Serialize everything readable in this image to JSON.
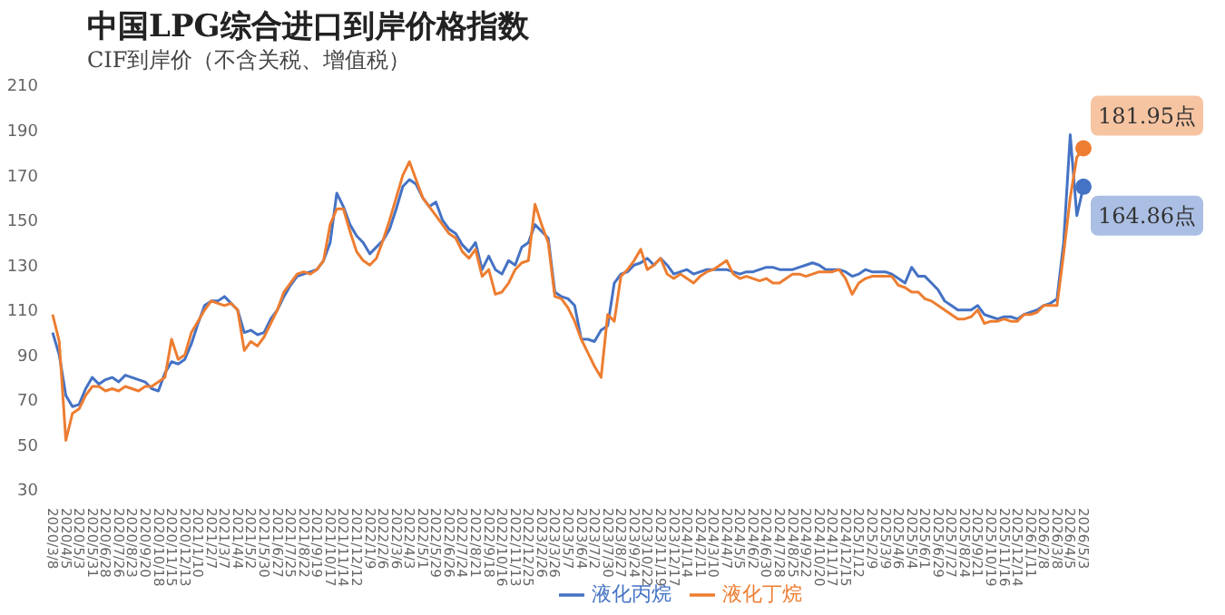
{
  "chart_data": {
    "type": "line",
    "title": "中国LPG综合进口到岸价格指数",
    "subtitle": "CIF到岸价（不含关税、增值税）",
    "categories": [
      "2020/3/8",
      null,
      "2020/4/5",
      null,
      "2020/5/3",
      null,
      "2020/5/31",
      null,
      "2020/6/28",
      null,
      "2020/7/26",
      null,
      "2020/8/23",
      null,
      "2020/9/20",
      null,
      "2020/10/18",
      null,
      "2020/11/15",
      null,
      "2020/12/13",
      null,
      "2021/1/10",
      null,
      "2021/2/7",
      null,
      "2021/3/7",
      null,
      "2021/4/4",
      null,
      "2021/5/2",
      null,
      "2021/5/30",
      null,
      "2021/6/27",
      null,
      "2021/7/25",
      null,
      "2021/8/22",
      null,
      "2021/9/19",
      null,
      "2021/10/17",
      null,
      "2021/11/14",
      null,
      "2021/12/12",
      null,
      "2022/1/9",
      null,
      "2022/2/6",
      null,
      "2022/3/6",
      null,
      "2022/4/3",
      null,
      "2022/5/1",
      null,
      "2022/5/29",
      null,
      "2022/6/26",
      null,
      "2022/7/24",
      null,
      "2022/8/21",
      null,
      "2022/9/18",
      null,
      "2022/10/16",
      null,
      "2022/11/13",
      null,
      "2022/12/25",
      null,
      "2023/2/26",
      null,
      "2023/3/26",
      null,
      "2023/5/7",
      null,
      "2023/6/4",
      null,
      "2023/7/2",
      null,
      "2023/7/30",
      null,
      "2023/8/27",
      null,
      "2023/9/24",
      null,
      "2023/10/22",
      null,
      "2023/11/19",
      null,
      "2023/12/17",
      null,
      "2024/1/14",
      null,
      "2024/2/11",
      null,
      "2024/3/10",
      null,
      "2024/4/7",
      null,
      "2024/5/5",
      null,
      "2024/6/2",
      null,
      "2024/6/30",
      null,
      "2024/7/28",
      null,
      "2024/8/25",
      null,
      "2024/9/22",
      null,
      "2024/10/20",
      null,
      "2024/11/17",
      null,
      "2024/12/15",
      null,
      "2025/1/12",
      null,
      "2025/2/9",
      null,
      "2025/3/9",
      null,
      "2025/4/6",
      null,
      "2025/5/4",
      null,
      "2025/6/1",
      null,
      "2025/6/29",
      null,
      "2025/7/27",
      null,
      "2025/8/24",
      null,
      "2025/9/21",
      null,
      "2025/10/19",
      null,
      "2025/11/16",
      null,
      "2025/12/14",
      null,
      "2026/1/11",
      null,
      "2026/2/8",
      null,
      "2026/3/8",
      null,
      "2026/4/5",
      null,
      "2026/5/3"
    ],
    "series": [
      {
        "name": "液化丙烷",
        "color": "#4472c4",
        "values": [
          100,
          90,
          72,
          67,
          68,
          75,
          80,
          77,
          79,
          80,
          78,
          81,
          80,
          79,
          78,
          75,
          74,
          82,
          87,
          86,
          88,
          95,
          104,
          112,
          114,
          114,
          116,
          113,
          110,
          100,
          101,
          99,
          100,
          106,
          110,
          116,
          121,
          125,
          126,
          127,
          128,
          132,
          140,
          162,
          156,
          148,
          143,
          140,
          135,
          138,
          141,
          146,
          155,
          165,
          168,
          166,
          160,
          156,
          158,
          150,
          146,
          144,
          139,
          136,
          140,
          128,
          134,
          128,
          126,
          132,
          130,
          138,
          140,
          148,
          145,
          142,
          118,
          116,
          115,
          112,
          97,
          97,
          96,
          101,
          103,
          122,
          126,
          127,
          130,
          131,
          133,
          130,
          133,
          130,
          126,
          127,
          128,
          126,
          127,
          128,
          128,
          128,
          128,
          127,
          126,
          127,
          127,
          128,
          129,
          129,
          128,
          128,
          128,
          129,
          130,
          131,
          130,
          128,
          128,
          128,
          127,
          125,
          126,
          128,
          127,
          127,
          127,
          126,
          124,
          122,
          129,
          125,
          125,
          122,
          119,
          114,
          112,
          110,
          110,
          110,
          112,
          108,
          107,
          106,
          107,
          107,
          106,
          108,
          109,
          110,
          112,
          113,
          115,
          140,
          188,
          152,
          164.86
        ]
      },
      {
        "name": "液化丁烷",
        "color": "#ed7d31",
        "values": [
          108,
          96,
          52,
          64,
          66,
          72,
          76,
          76,
          74,
          75,
          74,
          76,
          75,
          74,
          76,
          76,
          78,
          80,
          97,
          88,
          90,
          100,
          105,
          110,
          114,
          113,
          112,
          113,
          110,
          92,
          96,
          94,
          98,
          104,
          110,
          118,
          122,
          126,
          127,
          126,
          128,
          132,
          148,
          155,
          155,
          145,
          136,
          132,
          130,
          133,
          141,
          150,
          160,
          170,
          176,
          168,
          160,
          156,
          152,
          148,
          144,
          142,
          136,
          133,
          137,
          125,
          128,
          117,
          118,
          122,
          128,
          131,
          132,
          157,
          148,
          140,
          116,
          115,
          111,
          105,
          97,
          91,
          85,
          80,
          108,
          105,
          125,
          128,
          132,
          137,
          128,
          130,
          133,
          126,
          124,
          126,
          124,
          122,
          125,
          127,
          128,
          130,
          132,
          126,
          124,
          125,
          124,
          123,
          124,
          122,
          122,
          124,
          126,
          126,
          125,
          126,
          127,
          127,
          127,
          128,
          124,
          117,
          122,
          124,
          125,
          125,
          125,
          125,
          121,
          120,
          118,
          118,
          115,
          114,
          112,
          110,
          108,
          106,
          106,
          107,
          110,
          104,
          105,
          105,
          106,
          105,
          105,
          108,
          108,
          109,
          112,
          112,
          112,
          135,
          160,
          178,
          181.95
        ]
      }
    ],
    "ylim": [
      30,
      210
    ],
    "yticks": [
      30,
      50,
      70,
      90,
      110,
      130,
      150,
      170,
      190,
      210
    ],
    "legend": "bottom",
    "annotations": [
      {
        "text": "181.95点",
        "x": "2026/5/3",
        "y": 181.95
      },
      {
        "text": "164.86点",
        "x": "2026/5/3",
        "y": 164.86
      }
    ]
  }
}
